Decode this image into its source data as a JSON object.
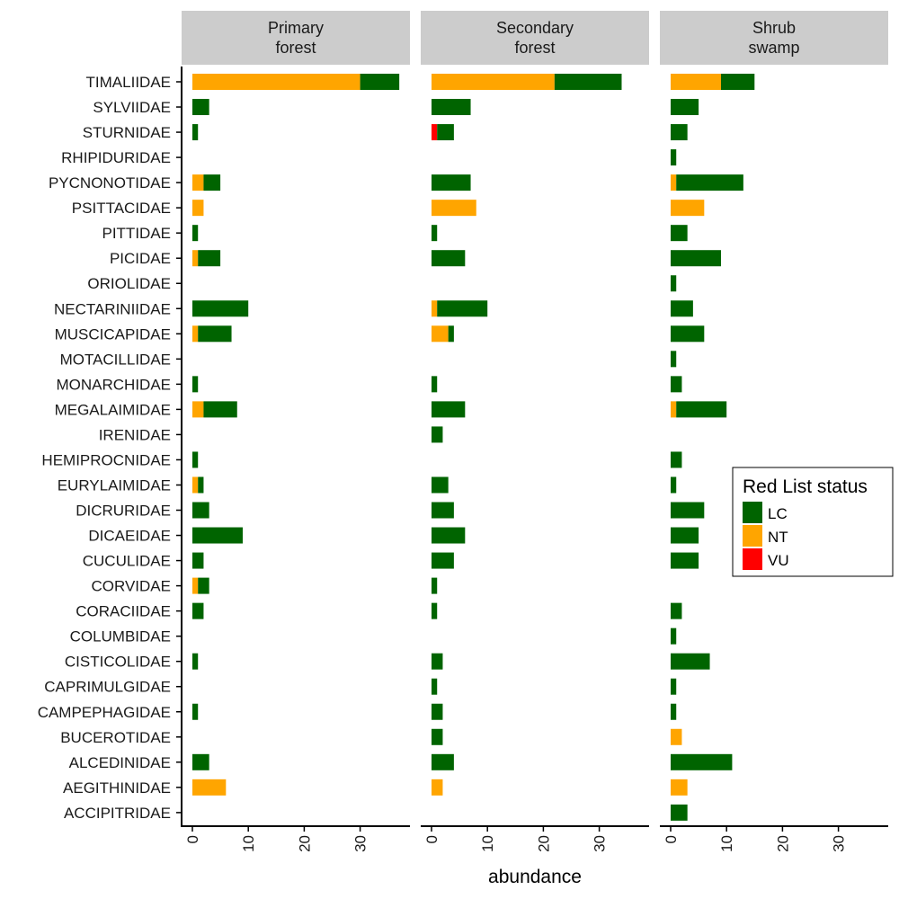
{
  "chart_data": {
    "type": "bar",
    "orientation": "horizontal",
    "stacked": true,
    "title": "",
    "xlabel": "abundance",
    "ylabel": "",
    "xlim": [
      0,
      38
    ],
    "x_ticks": [
      0,
      10,
      20,
      30
    ],
    "grid": false,
    "categories": [
      "TIMALIIDAE",
      "SYLVIIDAE",
      "STURNIDAE",
      "RHIPIDURIDAE",
      "PYCNONOTIDAE",
      "PSITTACIDAE",
      "PITTIDAE",
      "PICIDAE",
      "ORIOLIDAE",
      "NECTARINIIDAE",
      "MUSCICAPIDAE",
      "MOTACILLIDAE",
      "MONARCHIDAE",
      "MEGALAIMIDAE",
      "IRENIDAE",
      "HEMIPROCNIDAE",
      "EURYLAIMIDAE",
      "DICRURIDAE",
      "DICAEIDAE",
      "CUCULIDAE",
      "CORVIDAE",
      "CORACIIDAE",
      "COLUMBIDAE",
      "CISTICOLIDAE",
      "CAPRIMULGIDAE",
      "CAMPEPHAGIDAE",
      "BUCEROTIDAE",
      "ALCEDINIDAE",
      "AEGITHINIDAE",
      "ACCIPITRIDAE"
    ],
    "stack_order": [
      "VU",
      "NT",
      "LC"
    ],
    "legend": {
      "title": "Red List status",
      "position": "right",
      "entries": [
        {
          "key": "LC",
          "label": "LC",
          "color": "#006400"
        },
        {
          "key": "NT",
          "label": "NT",
          "color": "#FFA500"
        },
        {
          "key": "VU",
          "label": "VU",
          "color": "#FF0000"
        }
      ]
    },
    "panels": [
      {
        "name": "Primary forest",
        "strip_lines": [
          "Primary",
          "forest"
        ],
        "series": [
          {
            "name": "LC",
            "values": [
              7,
              3,
              1,
              0,
              3,
              0,
              1,
              4,
              0,
              10,
              6,
              0,
              1,
              6,
              0,
              1,
              1,
              3,
              9,
              2,
              2,
              2,
              0,
              1,
              0,
              1,
              0,
              3,
              0,
              0
            ]
          },
          {
            "name": "NT",
            "values": [
              30,
              0,
              0,
              0,
              2,
              2,
              0,
              1,
              0,
              0,
              1,
              0,
              0,
              2,
              0,
              0,
              1,
              0,
              0,
              0,
              1,
              0,
              0,
              0,
              0,
              0,
              0,
              0,
              6,
              0
            ]
          },
          {
            "name": "VU",
            "values": [
              0,
              0,
              0,
              0,
              0,
              0,
              0,
              0,
              0,
              0,
              0,
              0,
              0,
              0,
              0,
              0,
              0,
              0,
              0,
              0,
              0,
              0,
              0,
              0,
              0,
              0,
              0,
              0,
              0,
              0
            ]
          }
        ]
      },
      {
        "name": "Secondary forest",
        "strip_lines": [
          "Secondary",
          "forest"
        ],
        "series": [
          {
            "name": "LC",
            "values": [
              12,
              7,
              3,
              0,
              7,
              0,
              1,
              6,
              0,
              9,
              1,
              0,
              1,
              6,
              2,
              0,
              3,
              4,
              6,
              4,
              1,
              1,
              0,
              2,
              1,
              2,
              2,
              4,
              0,
              0
            ]
          },
          {
            "name": "NT",
            "values": [
              22,
              0,
              0,
              0,
              0,
              8,
              0,
              0,
              0,
              1,
              3,
              0,
              0,
              0,
              0,
              0,
              0,
              0,
              0,
              0,
              0,
              0,
              0,
              0,
              0,
              0,
              0,
              0,
              2,
              0
            ]
          },
          {
            "name": "VU",
            "values": [
              0,
              0,
              1,
              0,
              0,
              0,
              0,
              0,
              0,
              0,
              0,
              0,
              0,
              0,
              0,
              0,
              0,
              0,
              0,
              0,
              0,
              0,
              0,
              0,
              0,
              0,
              0,
              0,
              0,
              0
            ]
          }
        ]
      },
      {
        "name": "Shrub swamp",
        "strip_lines": [
          "Shrub",
          "swamp"
        ],
        "series": [
          {
            "name": "LC",
            "values": [
              6,
              5,
              3,
              1,
              12,
              0,
              3,
              9,
              1,
              4,
              6,
              1,
              2,
              9,
              0,
              2,
              1,
              6,
              5,
              5,
              0,
              2,
              1,
              7,
              1,
              1,
              0,
              11,
              0,
              3
            ]
          },
          {
            "name": "NT",
            "values": [
              9,
              0,
              0,
              0,
              1,
              6,
              0,
              0,
              0,
              0,
              0,
              0,
              0,
              1,
              0,
              0,
              0,
              0,
              0,
              0,
              0,
              0,
              0,
              0,
              0,
              0,
              2,
              0,
              3,
              0
            ]
          },
          {
            "name": "VU",
            "values": [
              0,
              0,
              0,
              0,
              0,
              0,
              0,
              0,
              0,
              0,
              0,
              0,
              0,
              0,
              0,
              0,
              0,
              0,
              0,
              0,
              0,
              0,
              0,
              0,
              0,
              0,
              0,
              0,
              0,
              0
            ]
          }
        ]
      }
    ]
  }
}
